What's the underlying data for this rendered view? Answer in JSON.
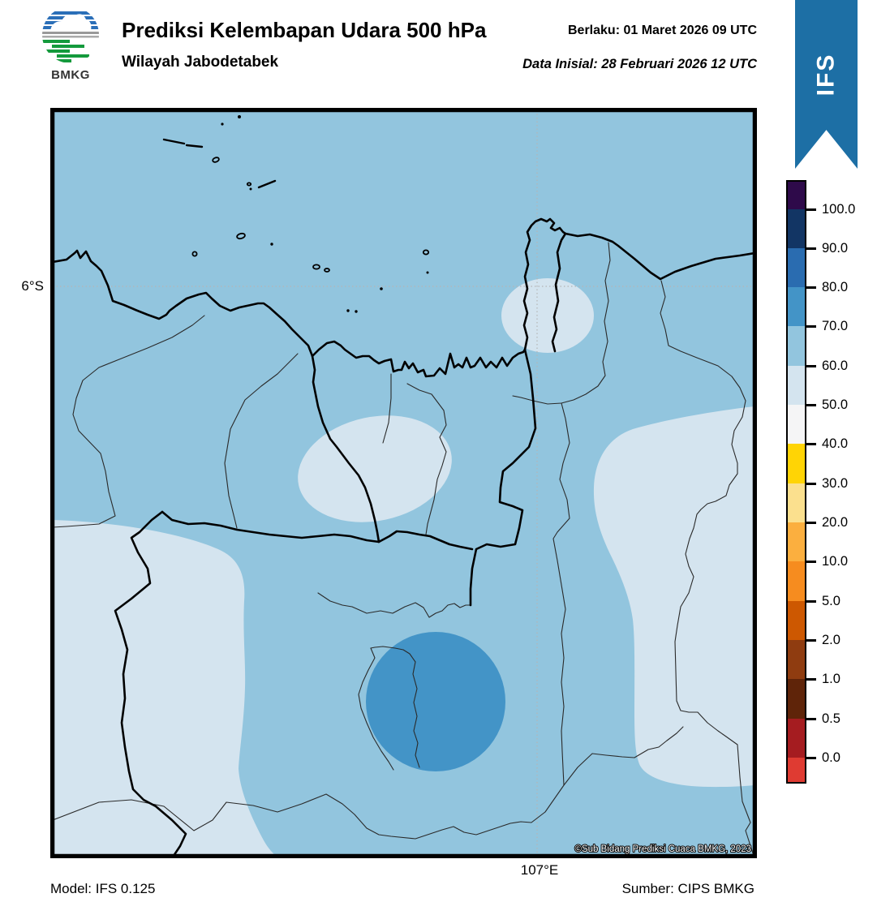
{
  "header": {
    "logo_label": "BMKG",
    "title": "Prediksi Kelembapan Udara 500 hPa",
    "subtitle": "Wilayah Jabodetabek",
    "valid_line": "Berlaku:  01 Maret 2026 09 UTC",
    "init_line": "Data Inisial:  28 Februari 2026 12 UTC",
    "ribbon_label": "IFS"
  },
  "map": {
    "lat_tick_label": "6°S",
    "lon_tick_label": "107°E",
    "copyright": "©Sub Bidang Prediksi Cuaca BMKG, 2023"
  },
  "footer": {
    "model": "Model: IFS 0.125",
    "source": "Sumber: CIPS BMKG"
  },
  "colorbar": {
    "labels": [
      "100.0",
      "90.0",
      "80.0",
      "70.0",
      "60.0",
      "50.0",
      "40.0",
      "30.0",
      "20.0",
      "10.0",
      "5.0",
      "2.0",
      "1.0",
      "0.5",
      "0.0"
    ],
    "heights": [
      34,
      48,
      48,
      48,
      49,
      48,
      48,
      49,
      48,
      48,
      49,
      48,
      48,
      49,
      48,
      30
    ],
    "colors": [
      "#2e0a4a",
      "#123564",
      "#2a6cb0",
      "#4394c7",
      "#92c5de",
      "#d4e4ef",
      "#f5f5f6",
      "#ffd405",
      "#fbe08e",
      "#fbaf3f",
      "#f68c1f",
      "#cd5801",
      "#8f3c10",
      "#5f2409",
      "#a51c20",
      "#df3b32"
    ]
  },
  "colors": {
    "ribbon_blue": "#1d6fa5",
    "map_base": "#92c5de",
    "map_light": "#d4e4ef",
    "map_dark": "#4394c7",
    "boundary_thin": "#2a2a2a",
    "gridline": "#b5b5b5"
  }
}
